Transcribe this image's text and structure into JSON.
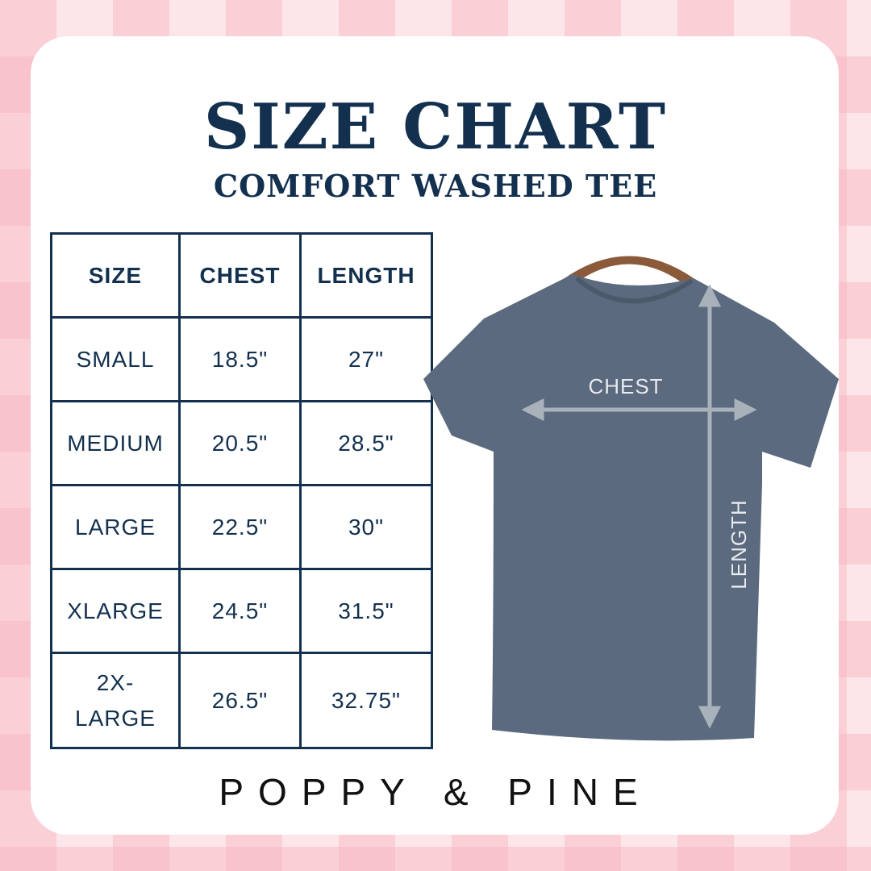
{
  "header": {
    "title": "SIZE CHART",
    "subtitle": "COMFORT WASHED TEE"
  },
  "table": {
    "columns": [
      "SIZE",
      "CHEST",
      "LENGTH"
    ],
    "rows": [
      [
        "SMALL",
        "18.5\"",
        "27\""
      ],
      [
        "MEDIUM",
        "20.5\"",
        "28.5\""
      ],
      [
        "LARGE",
        "22.5\"",
        "30\""
      ],
      [
        "XLARGE",
        "24.5\"",
        "31.5\""
      ],
      [
        "2X-LARGE",
        "26.5\"",
        "32.75\""
      ]
    ]
  },
  "diagram": {
    "chest_label": "CHEST",
    "length_label": "LENGTH"
  },
  "brand": "POPPY & PINE",
  "colors": {
    "navy": "#13304f",
    "shirt": "#5b6a7e",
    "background_pink": "#f8c9d2"
  }
}
